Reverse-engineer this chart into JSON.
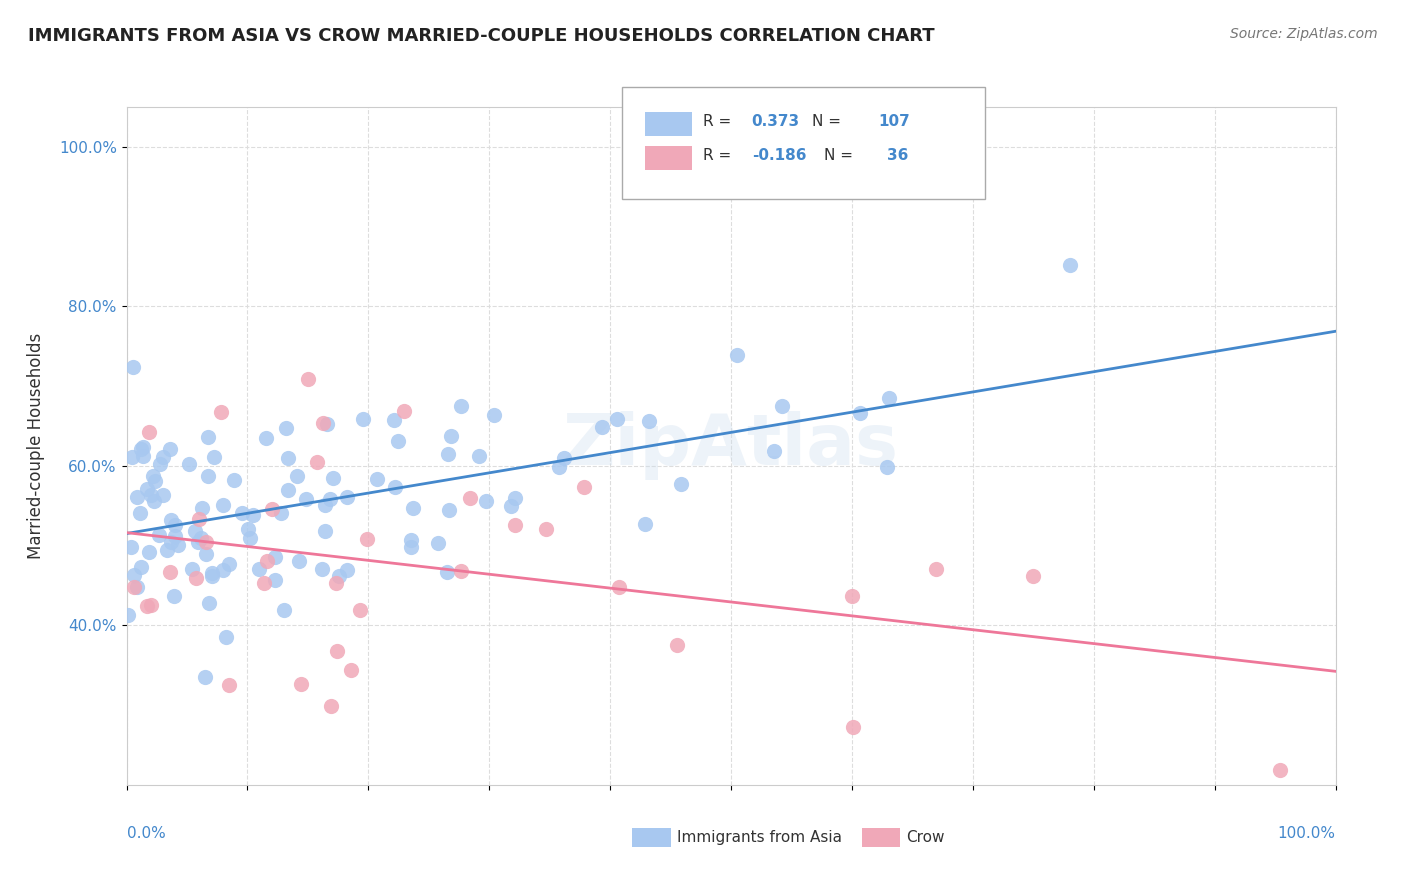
{
  "title": "IMMIGRANTS FROM ASIA VS CROW MARRIED-COUPLE HOUSEHOLDS CORRELATION CHART",
  "source": "Source: ZipAtlas.com",
  "ylabel": "Married-couple Households",
  "blue_R": 0.373,
  "blue_N": 107,
  "pink_R": -0.186,
  "pink_N": 36,
  "blue_color": "#a8c8f0",
  "pink_color": "#f0a8b8",
  "blue_line_color": "#4488cc",
  "pink_line_color": "#ee7799",
  "watermark": "ZipAtlas",
  "background_color": "#ffffff",
  "grid_color": "#dddddd",
  "ytick_values": [
    40.0,
    60.0,
    80.0,
    100.0
  ],
  "xmin": 0,
  "xmax": 100,
  "ymin": 20,
  "ymax": 105
}
